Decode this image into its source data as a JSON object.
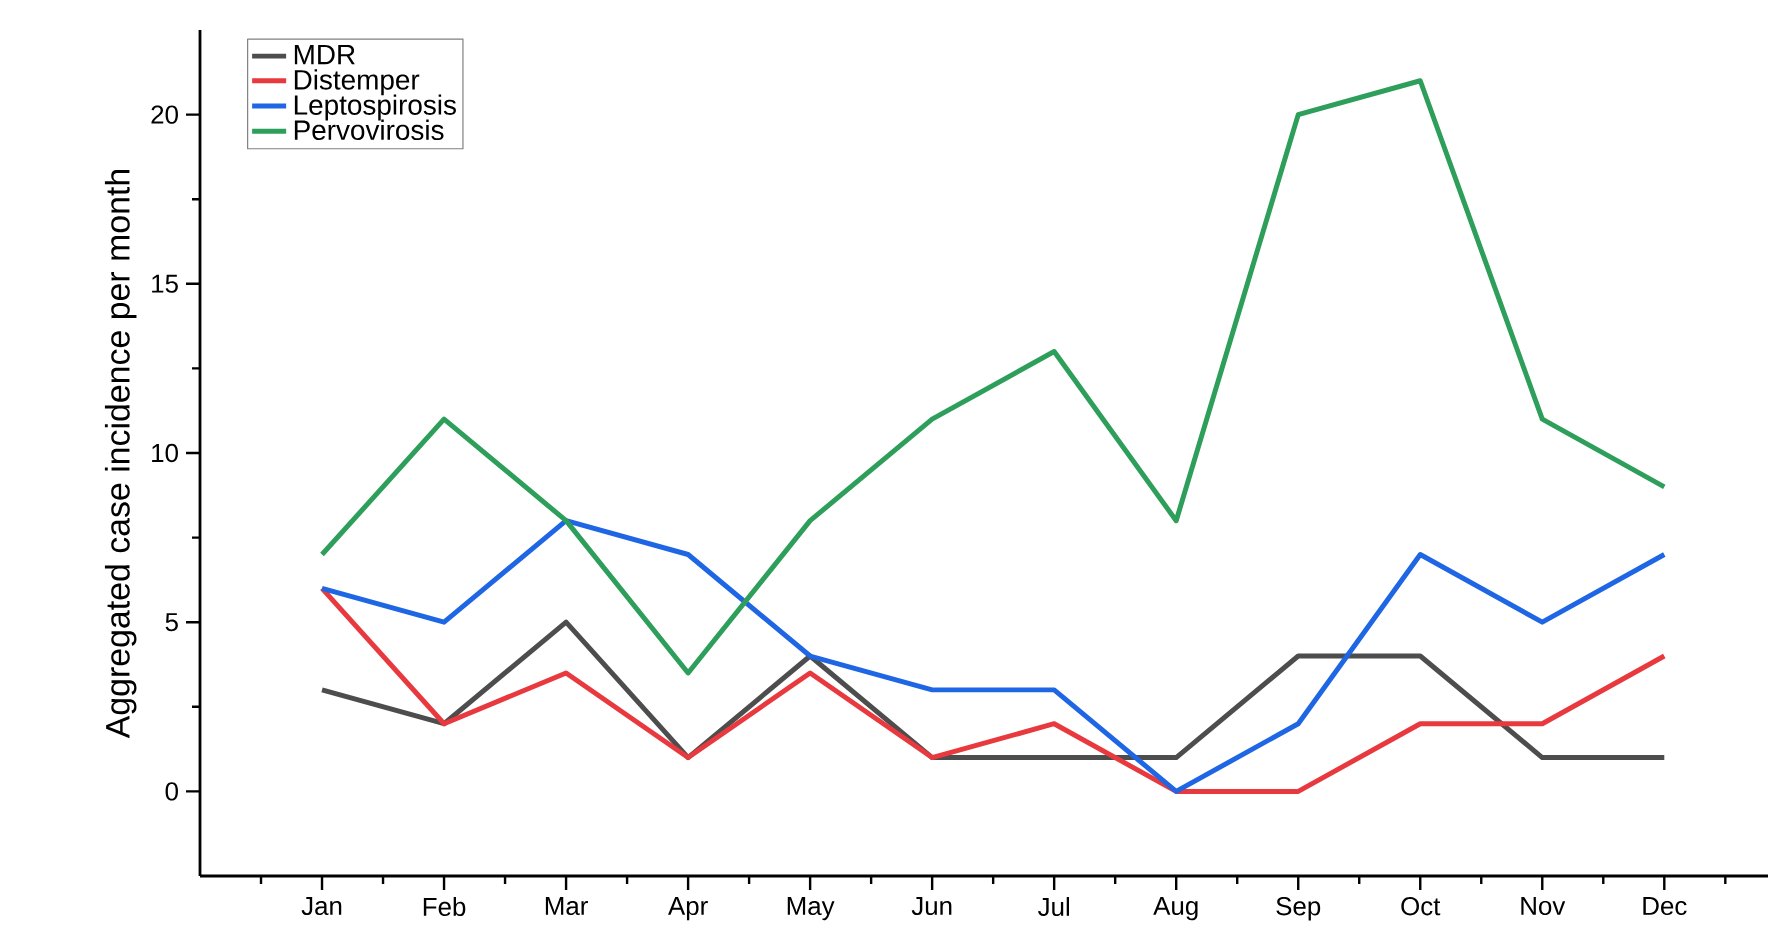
{
  "chart_data": {
    "type": "line",
    "ylabel": "Aggregated case incidence per month",
    "categories": [
      "Jan",
      "Feb",
      "Mar",
      "Apr",
      "May",
      "Jun",
      "Jul",
      "Aug",
      "Sep",
      "Oct",
      "Nov",
      "Dec"
    ],
    "series": [
      {
        "name": "MDR",
        "color": "#4d4d4d",
        "values": [
          3,
          2,
          5,
          1,
          4,
          1,
          1,
          1,
          4,
          4,
          1,
          1
        ]
      },
      {
        "name": "Distemper",
        "color": "#e8393f",
        "values": [
          6,
          2,
          3.5,
          1,
          3.5,
          1,
          2,
          0,
          0,
          2,
          2,
          4
        ]
      },
      {
        "name": "Leptospirosis",
        "color": "#1f66e5",
        "values": [
          6,
          5,
          8,
          7,
          4,
          3,
          3,
          0,
          2,
          7,
          5,
          7
        ]
      },
      {
        "name": "Pervovirosis",
        "color": "#2e9e5b",
        "values": [
          7,
          11,
          8,
          3.5,
          8,
          11,
          13,
          8,
          20,
          21,
          11,
          9
        ]
      }
    ],
    "ylim": [
      -2.5,
      22.5
    ],
    "yticks": [
      0,
      5,
      10,
      15,
      20
    ],
    "legend": "top left",
    "marker": "none",
    "line_style": "solid"
  }
}
